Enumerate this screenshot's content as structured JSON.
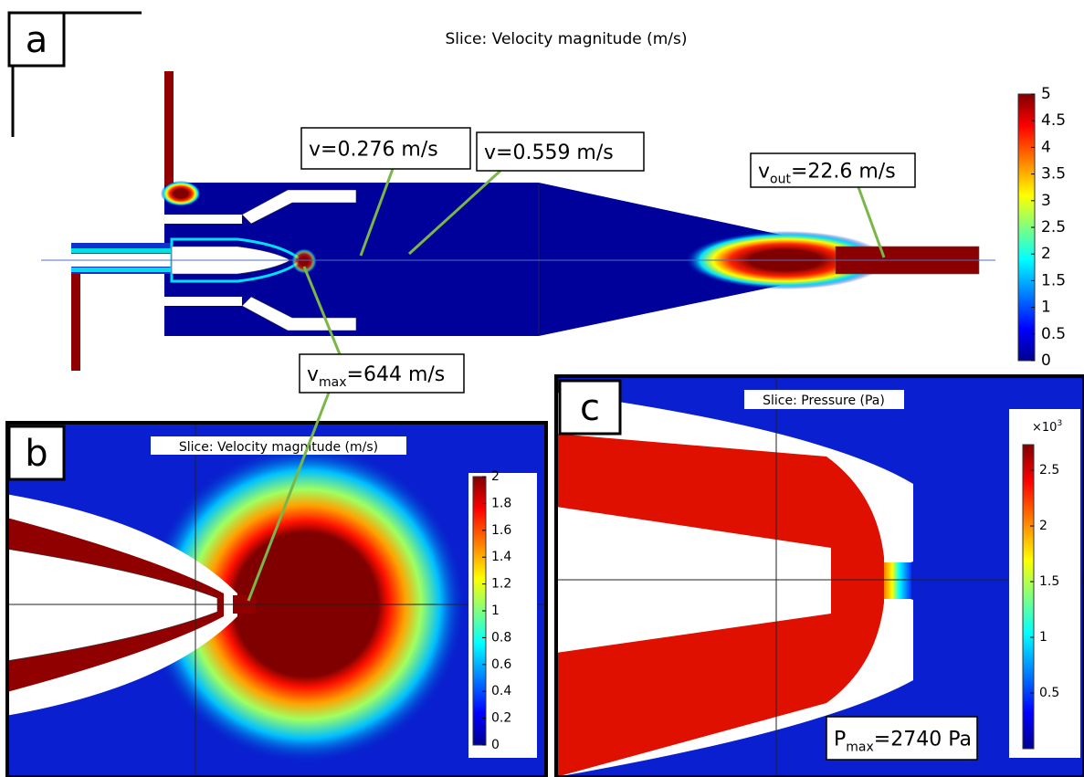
{
  "panels": [
    {
      "label": "a",
      "title": "Slice: Velocity magnitude (m/s)",
      "colorbar": {
        "range": [
          0,
          5
        ],
        "ticks": [
          0,
          0.5,
          1,
          1.5,
          2,
          2.5,
          3,
          3.5,
          4,
          4.5,
          5
        ]
      }
    },
    {
      "label": "b",
      "title": "Slice: Velocity magnitude (m/s)",
      "colorbar": {
        "range": [
          0,
          2
        ],
        "ticks": [
          0,
          0.2,
          0.4,
          0.6,
          0.8,
          1,
          1.2,
          1.4,
          1.6,
          1.8,
          2
        ]
      }
    },
    {
      "label": "c",
      "title": "Slice: Pressure (Pa)",
      "colorbar": {
        "multiplier": {
          "base": "×10",
          "sup": "3"
        },
        "range": [
          0,
          2.73
        ],
        "ticks": [
          0.5,
          1,
          1.5,
          2,
          2.5
        ]
      }
    }
  ],
  "annotations": [
    {
      "base": "v=0.276 m/s"
    },
    {
      "base": "v=0.559 m/s"
    },
    {
      "base": "v",
      "sub": "out",
      "rest": "=22.6 m/s"
    },
    {
      "base": "v",
      "sub": "max",
      "rest": "=644 m/s"
    },
    {
      "base": "P",
      "sub": "max",
      "rest": "=2740 Pa"
    }
  ]
}
